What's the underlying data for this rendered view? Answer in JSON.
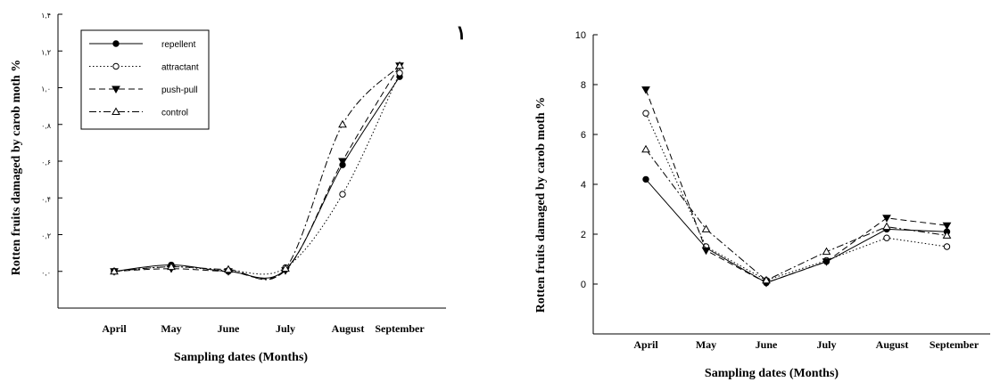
{
  "chart_data": [
    {
      "type": "line",
      "title": "",
      "xlabel": "Sampling dates (Months)",
      "ylabel": "Rotten fruits damaged by carob moth %",
      "categories": [
        "April",
        "May",
        "June",
        "July",
        "August",
        "September"
      ],
      "y_tick_labels": [
        "۰,۰",
        "۰,۲",
        "۰,۴",
        "۰,۶",
        "۰,۸",
        "۱,۰",
        "۱,۲",
        "۱,۴"
      ],
      "ylim": [
        -0.2,
        1.4
      ],
      "legend_position": "top-left",
      "grid": false,
      "corner_mark": "۱",
      "series": [
        {
          "name": "repellent",
          "marker": "filled-circle",
          "dash": "solid",
          "values": [
            0.0,
            0.035,
            0.0,
            0.01,
            0.58,
            1.06
          ]
        },
        {
          "name": "attractant",
          "marker": "open-circle",
          "dash": "dotted",
          "values": [
            0.0,
            0.025,
            0.005,
            0.02,
            0.42,
            1.08
          ]
        },
        {
          "name": "push-pull",
          "marker": "filled-triangle-down",
          "dash": "dashed",
          "values": [
            0.0,
            0.015,
            0.0,
            0.005,
            0.6,
            1.12
          ]
        },
        {
          "name": "control",
          "marker": "open-triangle-up",
          "dash": "dashdot",
          "values": [
            0.0,
            0.025,
            0.01,
            0.015,
            0.8,
            1.12
          ]
        }
      ]
    },
    {
      "type": "line",
      "title": "",
      "xlabel": "Sampling dates (Months)",
      "ylabel": "Rotten fruits damaged by carob moth %",
      "categories": [
        "April",
        "May",
        "June",
        "July",
        "August",
        "September"
      ],
      "y_tick_labels": [
        "0",
        "2",
        "4",
        "6",
        "8",
        "10"
      ],
      "ylim": [
        -2,
        10
      ],
      "grid": false,
      "series": [
        {
          "name": "repellent",
          "marker": "filled-circle",
          "dash": "solid",
          "values": [
            4.2,
            1.45,
            0.05,
            0.9,
            2.2,
            2.1
          ]
        },
        {
          "name": "attractant",
          "marker": "open-circle",
          "dash": "dotted",
          "values": [
            6.85,
            1.5,
            0.15,
            0.95,
            1.85,
            1.5
          ]
        },
        {
          "name": "push-pull",
          "marker": "filled-triangle-down",
          "dash": "dashed",
          "values": [
            7.8,
            1.35,
            0.05,
            0.9,
            2.65,
            2.35
          ]
        },
        {
          "name": "control",
          "marker": "open-triangle-up",
          "dash": "dashdot",
          "values": [
            5.4,
            2.2,
            0.15,
            1.3,
            2.3,
            1.95
          ]
        }
      ]
    }
  ]
}
